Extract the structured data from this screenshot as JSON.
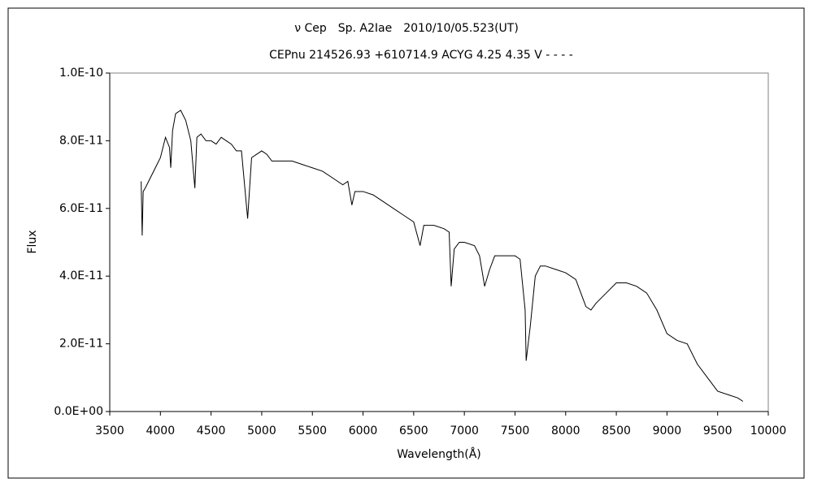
{
  "chart_data": {
    "type": "line",
    "title": "ν Cep　Sp. A2Iae　2010/10/05.523(UT)",
    "subtitle": "CEPnu 214526.93 +610714.9 ACYG 4.25 4.35 V - - - -",
    "x_label": "Wavelength(Å)",
    "y_label": "Flux",
    "color": "#000000",
    "x": [
      3810,
      3820,
      3830,
      3850,
      3900,
      3950,
      4000,
      4050,
      4090,
      4102,
      4120,
      4150,
      4200,
      4250,
      4300,
      4340,
      4360,
      4400,
      4450,
      4500,
      4550,
      4600,
      4650,
      4700,
      4750,
      4800,
      4861,
      4900,
      4950,
      5000,
      5050,
      5100,
      5200,
      5300,
      5400,
      5500,
      5600,
      5700,
      5800,
      5850,
      5890,
      5920,
      6000,
      6100,
      6200,
      6300,
      6400,
      6500,
      6563,
      6600,
      6700,
      6800,
      6850,
      6870,
      6900,
      6950,
      7000,
      7100,
      7150,
      7200,
      7250,
      7300,
      7400,
      7500,
      7550,
      7600,
      7610,
      7650,
      7700,
      7750,
      7800,
      7900,
      8000,
      8100,
      8150,
      8200,
      8250,
      8300,
      8400,
      8500,
      8600,
      8700,
      8800,
      8900,
      9000,
      9100,
      9200,
      9300,
      9400,
      9500,
      9600,
      9700,
      9750
    ],
    "values": [
      6.8e-11,
      5.2e-11,
      6.5e-11,
      6.6e-11,
      6.9e-11,
      7.2e-11,
      7.5e-11,
      8.1e-11,
      7.8e-11,
      7.2e-11,
      8.3e-11,
      8.8e-11,
      8.9e-11,
      8.6e-11,
      8e-11,
      6.6e-11,
      8.1e-11,
      8.2e-11,
      8e-11,
      8e-11,
      7.9e-11,
      8.1e-11,
      8e-11,
      7.9e-11,
      7.7e-11,
      7.7e-11,
      5.7e-11,
      7.5e-11,
      7.6e-11,
      7.7e-11,
      7.6e-11,
      7.4e-11,
      7.4e-11,
      7.4e-11,
      7.3e-11,
      7.2e-11,
      7.1e-11,
      6.9e-11,
      6.7e-11,
      6.8e-11,
      6.1e-11,
      6.5e-11,
      6.5e-11,
      6.4e-11,
      6.2e-11,
      6e-11,
      5.8e-11,
      5.6e-11,
      4.9e-11,
      5.5e-11,
      5.5e-11,
      5.4e-11,
      5.3e-11,
      3.7e-11,
      4.8e-11,
      5e-11,
      5e-11,
      4.9e-11,
      4.6e-11,
      3.7e-11,
      4.2e-11,
      4.6e-11,
      4.6e-11,
      4.6e-11,
      4.5e-11,
      3e-11,
      1.5e-11,
      2.5e-11,
      4e-11,
      4.3e-11,
      4.3e-11,
      4.2e-11,
      4.1e-11,
      3.9e-11,
      3.5e-11,
      3.1e-11,
      3e-11,
      3.2e-11,
      3.5e-11,
      3.8e-11,
      3.8e-11,
      3.7e-11,
      3.5e-11,
      3e-11,
      2.3e-11,
      2.1e-11,
      2e-11,
      1.4e-11,
      1e-11,
      6e-12,
      5e-12,
      4e-12,
      3e-12
    ],
    "xlim": [
      3500,
      10000
    ],
    "xticks": [
      3500,
      4000,
      4500,
      5000,
      5500,
      6000,
      6500,
      7000,
      7500,
      8000,
      8500,
      9000,
      9500,
      10000
    ],
    "ylim": [
      0,
      1e-10
    ],
    "yticks": [
      {
        "value": 0,
        "label": "0.0E+00"
      },
      {
        "value": 2e-11,
        "label": "2.0E-11"
      },
      {
        "value": 4e-11,
        "label": "4.0E-11"
      },
      {
        "value": 6e-11,
        "label": "6.0E-11"
      },
      {
        "value": 8e-11,
        "label": "8.0E-11"
      },
      {
        "value": 1e-10,
        "label": "1.0E-10"
      }
    ],
    "grid": false
  }
}
